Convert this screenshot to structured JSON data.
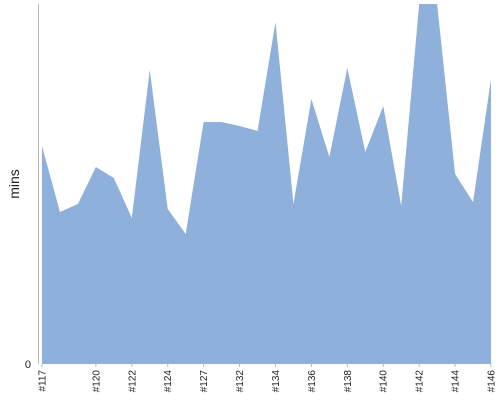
{
  "chart_data": {
    "type": "area",
    "title": "",
    "xlabel": "",
    "ylabel": "mins",
    "y_tick_labels": [
      "0"
    ],
    "ylim": [
      0,
      360
    ],
    "grid": false,
    "legend": "none",
    "x_tick_labels": [
      "#117",
      "#120",
      "#122",
      "#124",
      "#127",
      "#132",
      "#134",
      "#136",
      "#138",
      "#140",
      "#142",
      "#144",
      "#146"
    ],
    "x": [
      "#117",
      "#118",
      "#119",
      "#120",
      "#121",
      "#122",
      "#123",
      "#124",
      "#125",
      "#127",
      "#130",
      "#132",
      "#133",
      "#134",
      "#135",
      "#136",
      "#137",
      "#138",
      "#139",
      "#140",
      "#141",
      "#142",
      "#143",
      "#144",
      "#145",
      "#146"
    ],
    "series": [
      {
        "color": "#8eb0da",
        "values": [
          218,
          152,
          160,
          197,
          186,
          146,
          294,
          155,
          130,
          242,
          242,
          238,
          233,
          342,
          160,
          265,
          207,
          296,
          212,
          258,
          158,
          360,
          360,
          190,
          162,
          285
        ]
      }
    ]
  }
}
